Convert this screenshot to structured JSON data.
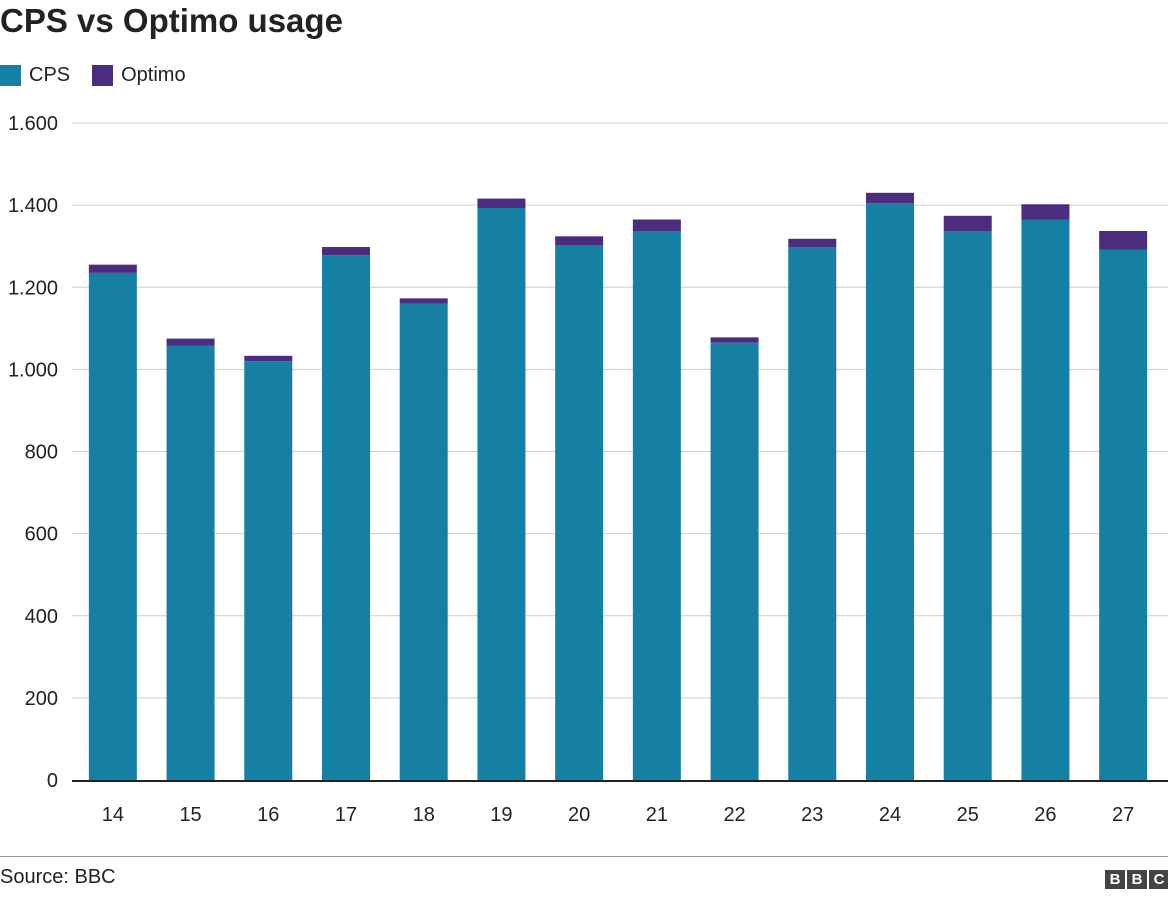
{
  "title": "CPS vs Optimo usage",
  "legend": [
    {
      "label": "CPS",
      "color": "#1580a3"
    },
    {
      "label": "Optimo",
      "color": "#4b2c7f"
    }
  ],
  "source": "Source: BBC",
  "logo": {
    "letters": [
      "B",
      "B",
      "C"
    ]
  },
  "chart_data": {
    "type": "bar",
    "stacked": true,
    "title": "CPS vs Optimo usage",
    "xlabel": "",
    "ylabel": "",
    "categories": [
      "14",
      "15",
      "16",
      "17",
      "18",
      "19",
      "20",
      "21",
      "22",
      "23",
      "24",
      "25",
      "26",
      "27"
    ],
    "series": [
      {
        "name": "CPS",
        "color": "#1580a3",
        "values": [
          1235,
          1058,
          1020,
          1278,
          1160,
          1393,
          1302,
          1337,
          1065,
          1298,
          1405,
          1337,
          1365,
          1292
        ]
      },
      {
        "name": "Optimo",
        "color": "#4b2c7f",
        "values": [
          20,
          17,
          13,
          20,
          13,
          23,
          22,
          28,
          13,
          20,
          25,
          37,
          37,
          45
        ]
      }
    ],
    "ylim": [
      0,
      1600
    ],
    "yticks": [
      0,
      200,
      400,
      600,
      800,
      1000,
      1200,
      1400,
      1600
    ],
    "ytick_labels": [
      "0",
      "200",
      "400",
      "600",
      "800",
      "1.000",
      "1.200",
      "1.400",
      "1.600"
    ],
    "grid": true,
    "legend_position": "top-left"
  }
}
